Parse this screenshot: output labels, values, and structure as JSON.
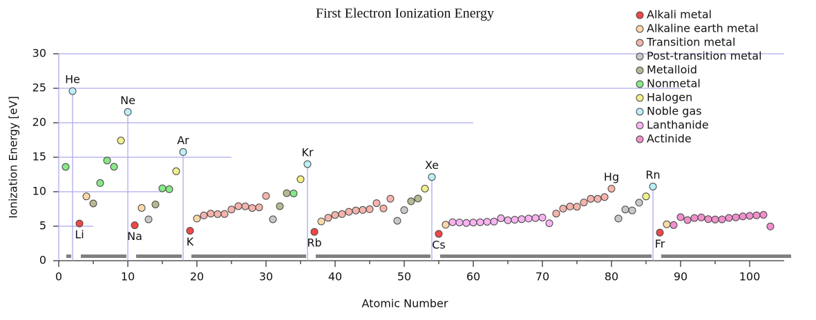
{
  "chart_data": {
    "type": "scatter",
    "title": "First Electron Ionization Energy",
    "xlabel": "Atomic Number",
    "ylabel": "Ionization Energy [eV]",
    "xlim": [
      0,
      105
    ],
    "xticks": [
      0,
      10,
      20,
      30,
      40,
      50,
      60,
      70,
      80,
      90,
      100
    ],
    "ylim": [
      0,
      30
    ],
    "yticks": [
      0,
      5,
      10,
      15,
      20,
      25,
      30
    ],
    "grid": true,
    "period_bars": true,
    "legend": "upper right",
    "series": [
      {
        "name": "Alkali metal",
        "color": "#f04848",
        "x": [
          3,
          11,
          19,
          37,
          55,
          87
        ],
        "values": [
          5.39,
          5.14,
          4.34,
          4.18,
          3.89,
          4.07
        ],
        "point_labels": [
          "Li",
          "Na",
          "K",
          "Rb",
          "Cs",
          "Fr"
        ],
        "label_side": "below"
      },
      {
        "name": "Alkaline earth metal",
        "color": "#fcd8a8",
        "x": [
          4,
          12,
          20,
          38,
          56,
          88
        ],
        "values": [
          9.32,
          7.65,
          6.11,
          5.69,
          5.21,
          5.28
        ]
      },
      {
        "name": "Transition metal",
        "color": "#f4b4ac",
        "x": [
          21,
          22,
          23,
          24,
          25,
          26,
          27,
          28,
          29,
          30,
          39,
          40,
          41,
          42,
          43,
          44,
          45,
          46,
          47,
          48,
          72,
          73,
          74,
          75,
          76,
          77,
          78,
          79,
          80
        ],
        "values": [
          6.56,
          6.83,
          6.75,
          6.77,
          7.43,
          7.9,
          7.88,
          7.64,
          7.73,
          9.39,
          6.22,
          6.63,
          6.76,
          7.09,
          7.28,
          7.36,
          7.46,
          8.34,
          7.58,
          8.99,
          6.83,
          7.55,
          7.86,
          7.83,
          8.44,
          8.97,
          8.96,
          9.23,
          10.44
        ],
        "point_labels": [
          null,
          null,
          null,
          null,
          null,
          null,
          null,
          null,
          null,
          null,
          null,
          null,
          null,
          null,
          null,
          null,
          null,
          null,
          null,
          null,
          null,
          null,
          null,
          null,
          null,
          null,
          null,
          null,
          "Hg"
        ],
        "label_side": "above"
      },
      {
        "name": "Post-transition metal",
        "color": "#c8c8c8",
        "x": [
          13,
          31,
          49,
          50,
          81,
          82,
          83,
          84
        ],
        "values": [
          5.99,
          6.0,
          5.79,
          7.34,
          6.11,
          7.42,
          7.29,
          8.41
        ]
      },
      {
        "name": "Metalloid",
        "color": "#b8b894",
        "x": [
          5,
          14,
          32,
          33,
          51,
          52
        ],
        "values": [
          8.3,
          8.15,
          7.9,
          9.79,
          8.61,
          9.01
        ]
      },
      {
        "name": "Nonmetal",
        "color": "#88e888",
        "x": [
          1,
          6,
          7,
          8,
          15,
          16,
          34
        ],
        "values": [
          13.6,
          11.26,
          14.53,
          13.62,
          10.49,
          10.36,
          9.75
        ]
      },
      {
        "name": "Halogen",
        "color": "#f2f08c",
        "x": [
          9,
          17,
          35,
          53,
          85
        ],
        "values": [
          17.42,
          12.97,
          11.81,
          10.45,
          9.32
        ]
      },
      {
        "name": "Noble gas",
        "color": "#bcf0f8",
        "x": [
          2,
          10,
          18,
          36,
          54,
          86
        ],
        "values": [
          24.59,
          21.56,
          15.76,
          14.0,
          12.13,
          10.75
        ],
        "point_labels": [
          "He",
          "Ne",
          "Ar",
          "Kr",
          "Xe",
          "Rn"
        ],
        "label_side": "above",
        "droplines": true
      },
      {
        "name": "Lanthanide",
        "color": "#f8b4f0",
        "x": [
          57,
          58,
          59,
          60,
          61,
          62,
          63,
          64,
          65,
          66,
          67,
          68,
          69,
          70,
          71
        ],
        "values": [
          5.58,
          5.54,
          5.47,
          5.53,
          5.58,
          5.64,
          5.67,
          6.15,
          5.86,
          5.94,
          6.02,
          6.11,
          6.18,
          6.25,
          5.43
        ]
      },
      {
        "name": "Actinide",
        "color": "#f090cc",
        "x": [
          89,
          90,
          91,
          92,
          93,
          94,
          95,
          96,
          97,
          98,
          99,
          100,
          101,
          102,
          103
        ],
        "values": [
          5.17,
          6.31,
          5.89,
          6.19,
          6.27,
          6.03,
          5.97,
          5.99,
          6.2,
          6.28,
          6.42,
          6.5,
          6.58,
          6.65,
          4.96
        ]
      }
    ]
  }
}
